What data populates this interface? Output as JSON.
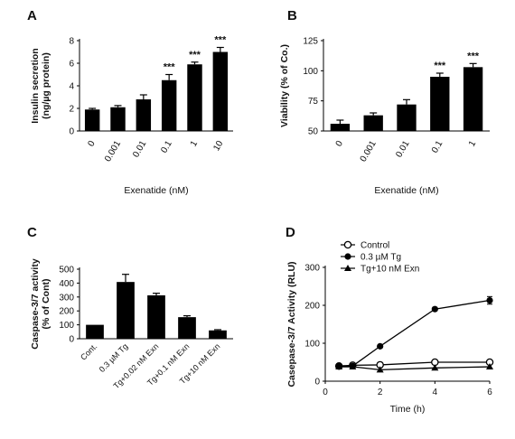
{
  "chart_data": [
    {
      "panel": "A",
      "type": "bar",
      "ylabel_lines": [
        "Insulin secretion",
        "(ng/µg protein)"
      ],
      "xlabel": "Exenatide (nM)",
      "categories": [
        "0",
        "0.001",
        "0.01",
        "0.1",
        "1",
        "10"
      ],
      "values": [
        1.9,
        2.1,
        2.8,
        4.5,
        5.9,
        7.0
      ],
      "errors": [
        0.1,
        0.15,
        0.4,
        0.5,
        0.2,
        0.4
      ],
      "significance": [
        "",
        "",
        "",
        "***",
        "***",
        "***"
      ],
      "ylim": [
        0,
        8
      ],
      "yticks": [
        0,
        2,
        4,
        6,
        8
      ],
      "bar_color": "#000000"
    },
    {
      "panel": "B",
      "type": "bar",
      "ylabel_lines": [
        "Viability (% of Co.)"
      ],
      "xlabel": "Exenatide (nM)",
      "categories": [
        "0",
        "0.001",
        "0.01",
        "0.1",
        "1"
      ],
      "values": [
        56,
        63,
        72,
        95,
        103
      ],
      "errors": [
        3,
        2,
        4,
        3,
        3
      ],
      "significance": [
        "",
        "",
        "",
        "***",
        "***"
      ],
      "ylim": [
        50,
        125
      ],
      "yticks": [
        50,
        75,
        100,
        125
      ],
      "bar_color": "#000000"
    },
    {
      "panel": "C",
      "type": "bar",
      "ylabel_lines": [
        "Caspase-3/7 activity",
        "(% of Cont)"
      ],
      "xlabel": "",
      "categories": [
        "Cont.",
        "0.3 µM Tg",
        "Tg+0.02 nM Exn",
        "Tg+0.1 nM Exn",
        "Tg+10 nM Exn"
      ],
      "values": [
        100,
        408,
        312,
        155,
        60
      ],
      "errors": [
        0,
        55,
        15,
        10,
        5
      ],
      "significance": [
        "",
        "",
        "",
        "",
        ""
      ],
      "ylim": [
        0,
        500
      ],
      "yticks": [
        0,
        100,
        200,
        300,
        400,
        500
      ],
      "bar_color": "#000000"
    },
    {
      "panel": "D",
      "type": "line",
      "ylabel_lines": [
        "Casepase-3/7 Activity (RLU)"
      ],
      "xlabel": "Time (h)",
      "xlim": [
        0,
        6
      ],
      "xticks": [
        0,
        2,
        4,
        6
      ],
      "ylim": [
        0,
        300
      ],
      "yticks": [
        0,
        100,
        200,
        300
      ],
      "series": [
        {
          "name": "Control",
          "marker": "open-circle",
          "x": [
            0.5,
            1,
            2,
            4,
            6
          ],
          "y": [
            40,
            42,
            43,
            50,
            50
          ],
          "errors": [
            2,
            2,
            2,
            2,
            3
          ]
        },
        {
          "name": "0.3 µM Tg",
          "marker": "filled-circle",
          "x": [
            0.5,
            1,
            2,
            4,
            6
          ],
          "y": [
            40,
            40,
            92,
            190,
            213
          ],
          "errors": [
            2,
            2,
            3,
            4,
            10
          ]
        },
        {
          "name": "Tg+10 nM Exn",
          "marker": "filled-triangle",
          "x": [
            0.5,
            1,
            2,
            4,
            6
          ],
          "y": [
            38,
            38,
            30,
            35,
            38
          ],
          "errors": [
            2,
            2,
            2,
            2,
            2
          ]
        }
      ],
      "legend_position": "top-left"
    }
  ]
}
